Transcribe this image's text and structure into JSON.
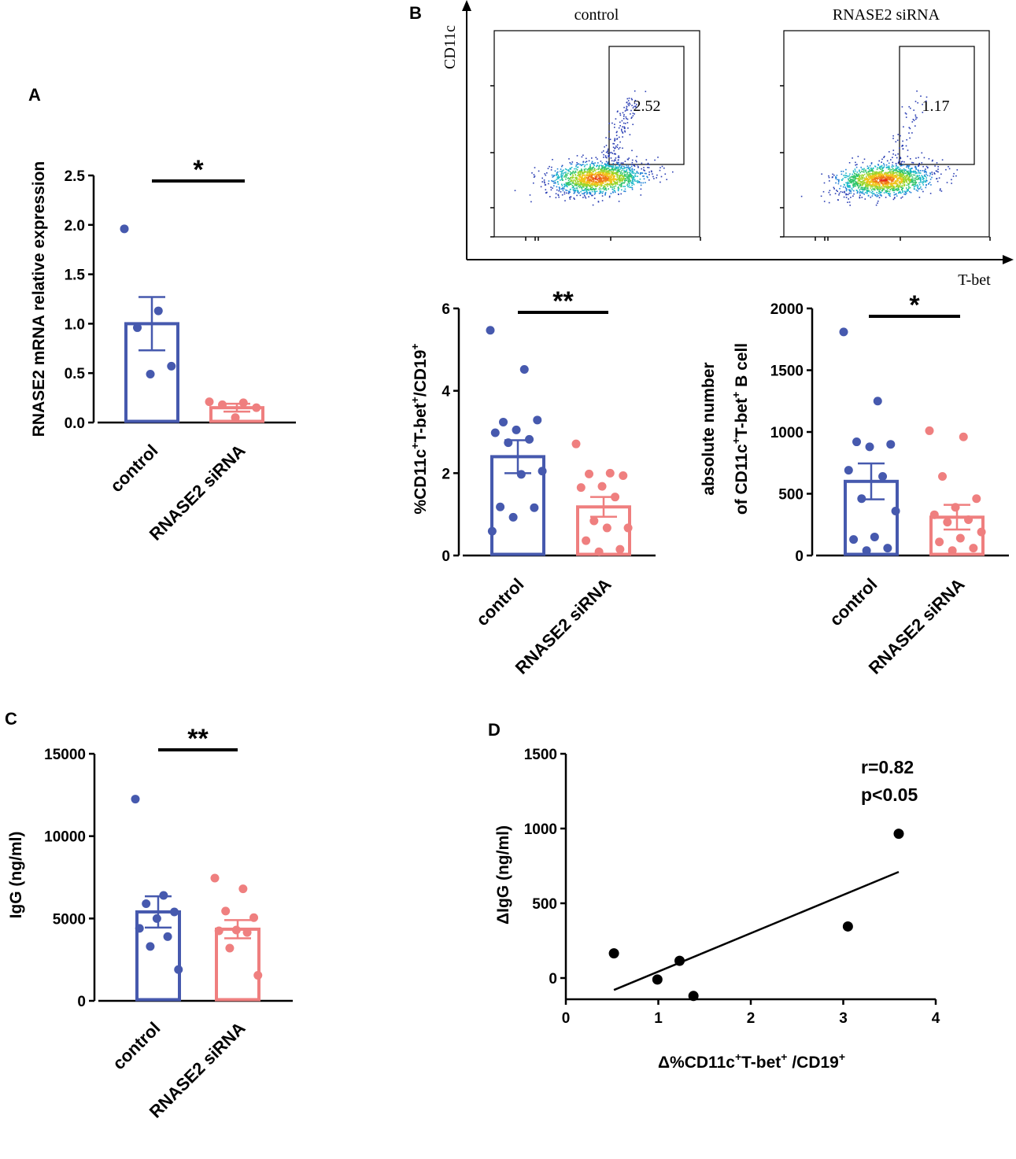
{
  "panel_labels": {
    "a": "A",
    "b": "B",
    "c": "C",
    "d": "D"
  },
  "colors": {
    "control": "#4659ae",
    "rnase2_sirna": "#ef7f7f",
    "axis": "#000000"
  },
  "chart_data": [
    {
      "id": "A",
      "type": "bar",
      "categories": [
        "control",
        "RNASE2 siRNA"
      ],
      "ylabel": "RNASE2 mRNA relative expression",
      "ylim": [
        0,
        2.5
      ],
      "yticks": [
        "0.0",
        "0.5",
        "1.0",
        "1.5",
        "2.0",
        "2.5"
      ],
      "significance": "*",
      "series": [
        {
          "name": "control",
          "mean": 1.0,
          "sem": 0.27,
          "points": [
            1.96,
            1.13,
            0.96,
            0.57,
            0.49
          ]
        },
        {
          "name": "RNASE2 siRNA",
          "mean": 0.15,
          "sem": 0.04,
          "points": [
            0.21,
            0.2,
            0.18,
            0.15,
            0.05
          ]
        }
      ]
    },
    {
      "id": "B-flow",
      "type": "scatter",
      "xlabel": "T-bet",
      "ylabel": "CD11c",
      "plots": [
        {
          "title": "control",
          "gate_value": "2.52"
        },
        {
          "title": "RNASE2 siRNA",
          "gate_value": "1.17"
        }
      ]
    },
    {
      "id": "B-percent",
      "type": "bar",
      "categories": [
        "control",
        "RNASE2 siRNA"
      ],
      "ylabel_parts": [
        "%CD11c",
        "+",
        "T-bet",
        "+",
        "/CD19",
        "+"
      ],
      "ylim": [
        0,
        6
      ],
      "yticks": [
        "0",
        "2",
        "4",
        "6"
      ],
      "significance": "**",
      "series": [
        {
          "name": "control",
          "mean": 2.4,
          "sem": 0.4,
          "points": [
            5.47,
            4.52,
            3.24,
            3.29,
            3.05,
            2.98,
            2.82,
            2.74,
            2.05,
            1.97,
            1.18,
            1.16,
            0.93,
            0.59
          ]
        },
        {
          "name": "RNASE2 siRNA",
          "mean": 1.18,
          "sem": 0.24,
          "points": [
            2.71,
            2.0,
            1.98,
            1.94,
            1.68,
            1.65,
            1.42,
            0.84,
            0.67,
            0.67,
            0.36,
            0.15,
            0.09
          ]
        }
      ]
    },
    {
      "id": "B-absolute",
      "type": "bar",
      "categories": [
        "control",
        "RNASE2 siRNA"
      ],
      "ylabel_line1": "absolute number",
      "ylabel_line2_parts": [
        "of CD11c",
        "+",
        "T-bet",
        "+",
        " B cell"
      ],
      "ylim": [
        0,
        2000
      ],
      "yticks": [
        "0",
        "500",
        "1000",
        "1500",
        "2000"
      ],
      "significance": "*",
      "series": [
        {
          "name": "control",
          "mean": 600,
          "sem": 145,
          "points": [
            1810,
            1250,
            920,
            900,
            880,
            690,
            640,
            460,
            360,
            150,
            130,
            60,
            40
          ]
        },
        {
          "name": "RNASE2 siRNA",
          "mean": 310,
          "sem": 100,
          "points": [
            1010,
            960,
            640,
            460,
            390,
            330,
            290,
            270,
            190,
            140,
            110,
            60,
            40
          ]
        }
      ]
    },
    {
      "id": "C",
      "type": "bar",
      "categories": [
        "control",
        "RNASE2 siRNA"
      ],
      "ylabel": "IgG (ng/ml)",
      "ylim": [
        0,
        15000
      ],
      "yticks": [
        "0",
        "5000",
        "10000",
        "15000"
      ],
      "significance": "**",
      "series": [
        {
          "name": "control",
          "mean": 5400,
          "sem": 950,
          "points": [
            12250,
            6400,
            5900,
            5400,
            5000,
            4400,
            3900,
            3300,
            1900
          ]
        },
        {
          "name": "RNASE2 siRNA",
          "mean": 4350,
          "sem": 550,
          "points": [
            7450,
            6800,
            5450,
            5050,
            4300,
            4250,
            4150,
            3200,
            1550
          ]
        }
      ]
    },
    {
      "id": "D",
      "type": "scatter",
      "xlabel_parts": [
        "Δ%CD11c",
        "+",
        "T-bet",
        "+",
        " /CD19",
        "+"
      ],
      "ylabel": "ΔIgG (ng/ml)",
      "xlim": [
        0,
        4
      ],
      "ylim": [
        -130,
        1500
      ],
      "xticks": [
        "0",
        "1",
        "2",
        "3",
        "4"
      ],
      "yticks": [
        "0",
        "500",
        "1000",
        "1500"
      ],
      "annotation": [
        "r=0.82",
        "p<0.05"
      ],
      "points": [
        [
          0.52,
          165
        ],
        [
          0.99,
          -10
        ],
        [
          1.23,
          115
        ],
        [
          1.38,
          -120
        ],
        [
          3.05,
          345
        ],
        [
          3.6,
          965
        ]
      ],
      "fit_line": {
        "x": [
          0.52,
          3.6
        ],
        "y": [
          -80,
          710
        ]
      }
    }
  ]
}
